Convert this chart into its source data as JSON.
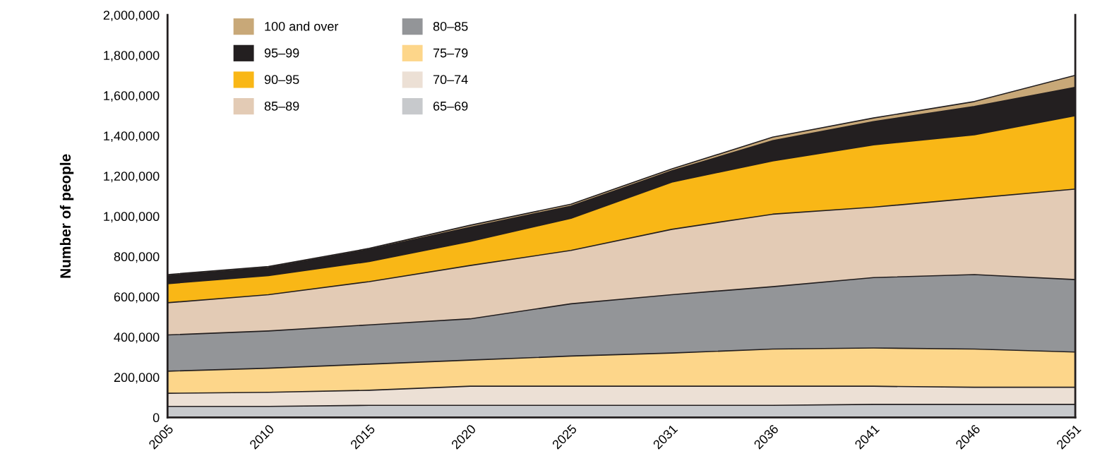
{
  "chart_data": {
    "type": "area",
    "stacked": true,
    "ylabel": "Number of people",
    "categories": [
      "2005",
      "2010",
      "2015",
      "2020",
      "2025",
      "2031",
      "2036",
      "2041",
      "2046",
      "2051"
    ],
    "ylim": [
      0,
      2000000
    ],
    "yticks": [
      {
        "value": 0,
        "label": "0"
      },
      {
        "value": 200000,
        "label": "200,000"
      },
      {
        "value": 400000,
        "label": "400,000"
      },
      {
        "value": 600000,
        "label": "600,000"
      },
      {
        "value": 800000,
        "label": "800,000"
      },
      {
        "value": 1000000,
        "label": "1,000,000"
      },
      {
        "value": 1200000,
        "label": "1,200,000"
      },
      {
        "value": 1400000,
        "label": "1,400,000"
      },
      {
        "value": 1600000,
        "label": "1,600,000"
      },
      {
        "value": 1800000,
        "label": "1,800,000"
      },
      {
        "value": 2000000,
        "label": "2,000,000"
      }
    ],
    "grid": false,
    "legend": "top left",
    "series": [
      {
        "name": "65–69",
        "color": "#c7c9cc",
        "values": [
          55000,
          55000,
          60000,
          60000,
          60000,
          60000,
          60000,
          65000,
          65000,
          65000
        ]
      },
      {
        "name": "70–74",
        "color": "#ece0d5",
        "values": [
          65000,
          70000,
          75000,
          95000,
          95000,
          95000,
          95000,
          90000,
          85000,
          85000
        ]
      },
      {
        "name": "75–79",
        "color": "#fdd68a",
        "values": [
          110000,
          120000,
          130000,
          130000,
          150000,
          165000,
          185000,
          190000,
          190000,
          175000
        ]
      },
      {
        "name": "80–85",
        "color": "#939598",
        "values": [
          180000,
          185000,
          195000,
          205000,
          260000,
          290000,
          310000,
          350000,
          370000,
          360000
        ]
      },
      {
        "name": "85–89",
        "color": "#e3cbb5",
        "values": [
          160000,
          180000,
          215000,
          265000,
          265000,
          325000,
          360000,
          350000,
          380000,
          450000
        ]
      },
      {
        "name": "90–95",
        "color": "#f9b716",
        "values": [
          95000,
          95000,
          100000,
          120000,
          160000,
          235000,
          265000,
          310000,
          315000,
          365000
        ]
      },
      {
        "name": "95–99",
        "color": "#231f20",
        "values": [
          40000,
          40000,
          60000,
          70000,
          60000,
          55000,
          100000,
          115000,
          140000,
          140000
        ]
      },
      {
        "name": "100 and over",
        "color": "#c8a878",
        "values": [
          5000,
          5000,
          5000,
          10000,
          10000,
          10000,
          18000,
          18000,
          25000,
          60000
        ]
      }
    ]
  }
}
